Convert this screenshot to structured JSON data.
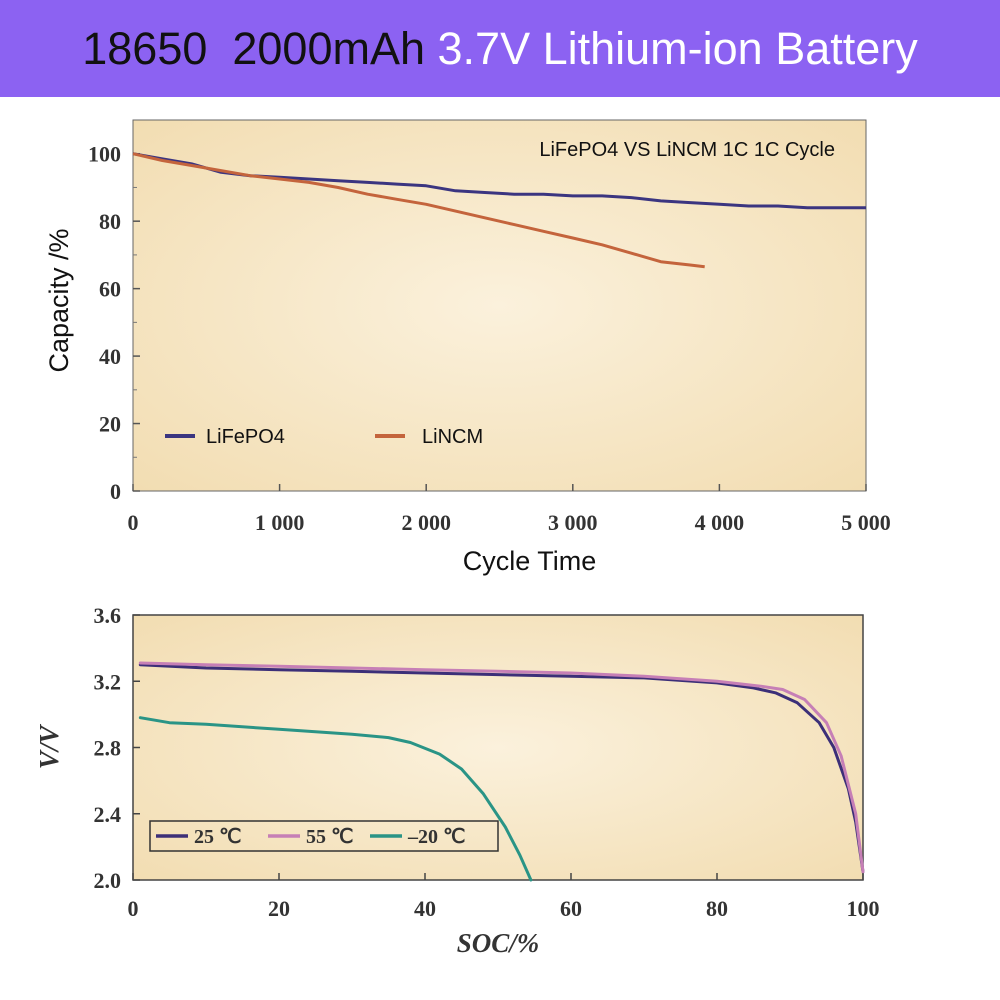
{
  "header": {
    "title_part1": "18650  2000mAh ",
    "title_part2": "3.7V Lithium-ion Battery"
  },
  "colors": {
    "banner": "#8c62f2",
    "lifepo4": "#3b3580",
    "lincm": "#c4643c",
    "t25": "#3c2f78",
    "t55": "#c67fb6",
    "tm20": "#2a9486",
    "plot_bg": "#f6e4bf"
  },
  "chart_data": [
    {
      "type": "line",
      "title": "",
      "annotation": "LiFePO4 VS LiNCM 1C 1C Cycle",
      "xlabel": "Cycle Time",
      "ylabel": "Capacity /%",
      "xlim": [
        0,
        5000
      ],
      "ylim": [
        0,
        110
      ],
      "xticks": [
        "0",
        "1 000",
        "2 000",
        "3 000",
        "4 000",
        "5 000"
      ],
      "xtick_values": [
        0,
        1000,
        2000,
        3000,
        4000,
        5000
      ],
      "yticks": [
        "0",
        "20",
        "40",
        "60",
        "80",
        "100"
      ],
      "ytick_values": [
        0,
        20,
        40,
        60,
        80,
        100
      ],
      "legend_position": "lower-left",
      "series": [
        {
          "name": "LiFePO4",
          "x": [
            0,
            200,
            400,
            600,
            800,
            1000,
            1200,
            1400,
            1600,
            1800,
            2000,
            2200,
            2400,
            2600,
            2800,
            3000,
            3200,
            3400,
            3600,
            3800,
            4000,
            4200,
            4400,
            4600,
            4800,
            5000
          ],
          "y": [
            100,
            98.5,
            97,
            94.5,
            93.5,
            93,
            92.5,
            92,
            91.5,
            91,
            90.5,
            89,
            88.5,
            88,
            88,
            87.5,
            87.5,
            87,
            86,
            85.5,
            85,
            84.5,
            84.5,
            84,
            84,
            84
          ]
        },
        {
          "name": "LiNCM",
          "x": [
            0,
            200,
            400,
            600,
            800,
            1000,
            1200,
            1400,
            1600,
            1800,
            2000,
            2200,
            2400,
            2600,
            2800,
            3000,
            3200,
            3400,
            3600,
            3800,
            3900
          ],
          "y": [
            100,
            98,
            96.5,
            95,
            93.5,
            92.5,
            91.5,
            90,
            88,
            86.5,
            85,
            83,
            81,
            79,
            77,
            75,
            73,
            70.5,
            68,
            67,
            66.5
          ]
        }
      ]
    },
    {
      "type": "line",
      "title": "",
      "xlabel": "SOC/%",
      "ylabel": "V/V",
      "xlim": [
        0,
        100
      ],
      "ylim": [
        2.0,
        3.6
      ],
      "xticks": [
        "0",
        "20",
        "40",
        "60",
        "80",
        "100"
      ],
      "xtick_values": [
        0,
        20,
        40,
        60,
        80,
        100
      ],
      "yticks": [
        "2.0",
        "2.4",
        "2.8",
        "3.2",
        "3.6"
      ],
      "ytick_values": [
        2.0,
        2.4,
        2.8,
        3.2,
        3.6
      ],
      "legend_position": "lower-left",
      "series": [
        {
          "name": "25 ℃",
          "x": [
            1,
            10,
            20,
            30,
            40,
            50,
            60,
            70,
            80,
            85,
            88,
            91,
            94,
            96,
            98,
            99,
            100
          ],
          "y": [
            3.3,
            3.28,
            3.27,
            3.26,
            3.25,
            3.24,
            3.23,
            3.22,
            3.19,
            3.16,
            3.13,
            3.07,
            2.95,
            2.8,
            2.55,
            2.35,
            2.05
          ]
        },
        {
          "name": "55 ℃",
          "x": [
            1,
            10,
            20,
            30,
            40,
            50,
            60,
            70,
            80,
            86,
            89,
            92,
            95,
            97,
            99,
            100
          ],
          "y": [
            3.31,
            3.3,
            3.29,
            3.28,
            3.27,
            3.26,
            3.25,
            3.23,
            3.2,
            3.17,
            3.15,
            3.09,
            2.95,
            2.75,
            2.4,
            2.05
          ]
        },
        {
          "name": "–20 ℃",
          "x": [
            1,
            5,
            10,
            20,
            30,
            35,
            38,
            42,
            45,
            48,
            51,
            53,
            54.5
          ],
          "y": [
            2.98,
            2.95,
            2.94,
            2.91,
            2.88,
            2.86,
            2.83,
            2.76,
            2.67,
            2.52,
            2.32,
            2.15,
            2.0
          ]
        }
      ]
    }
  ]
}
